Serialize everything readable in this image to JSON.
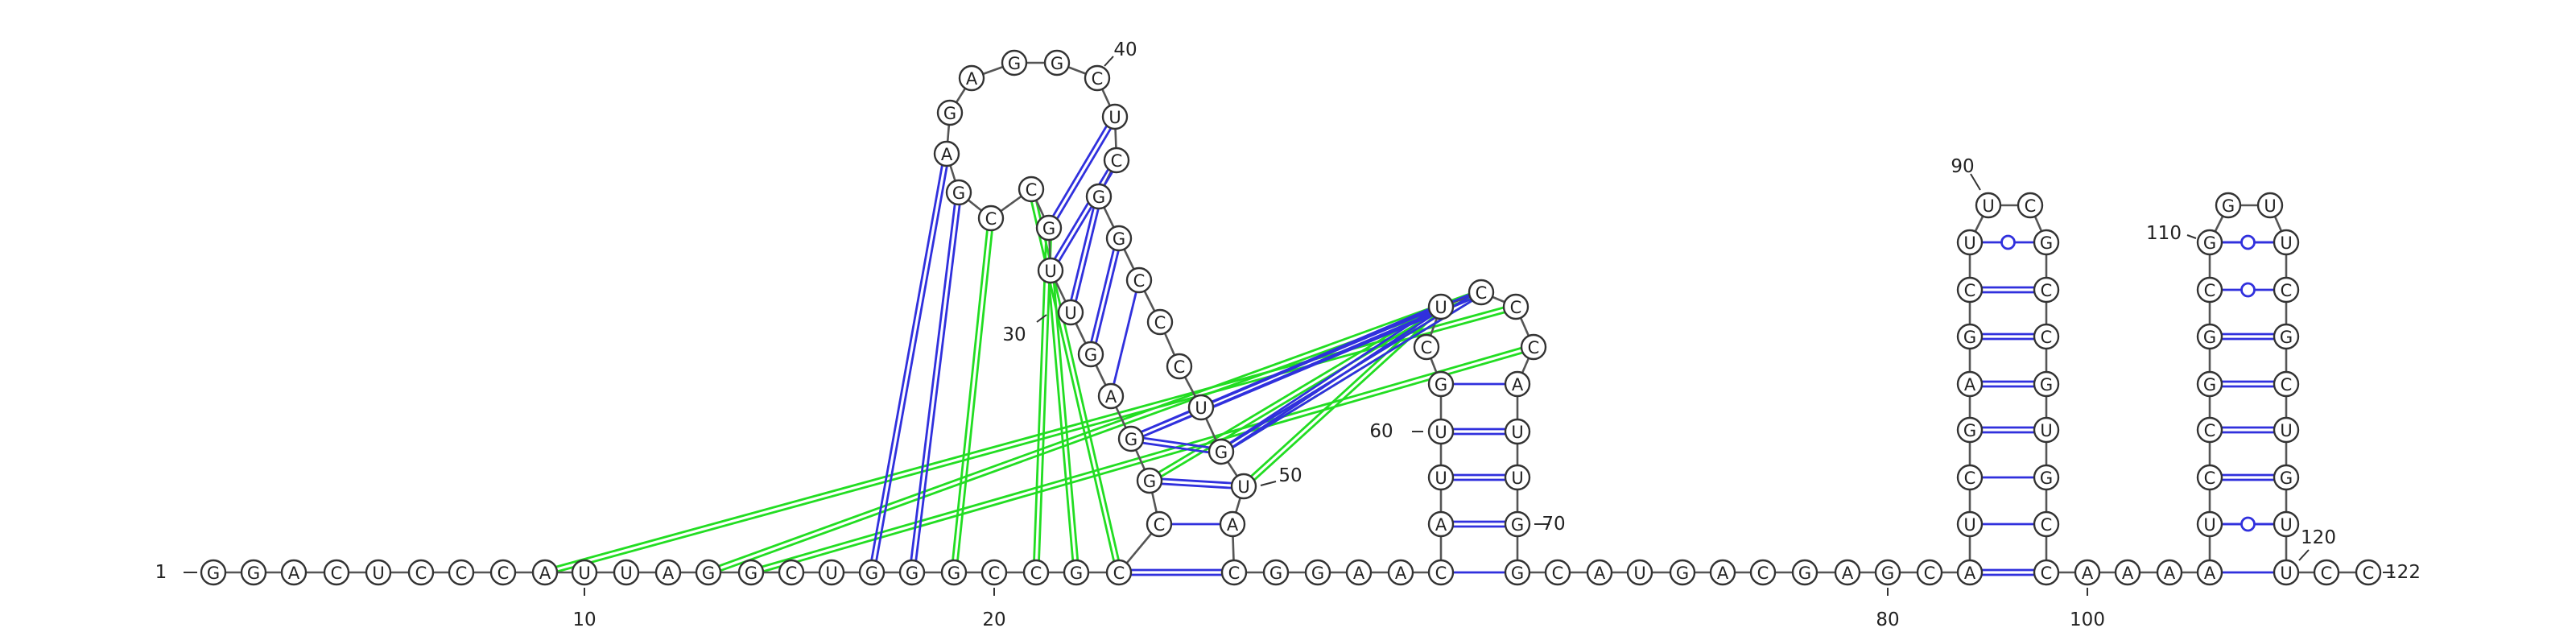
{
  "sequence": "GGACUCCCAUUAGGCUGGGCCGCCGGAGUUGCCGAGAGGCUCGGCCCUGUACGGAACAUUGCUCCCAUUGGCAUGACGAGCAUCGAGCUUCGCCGUGCCAAAAUCCGGCGGUUCGCUGUUCC"
}
